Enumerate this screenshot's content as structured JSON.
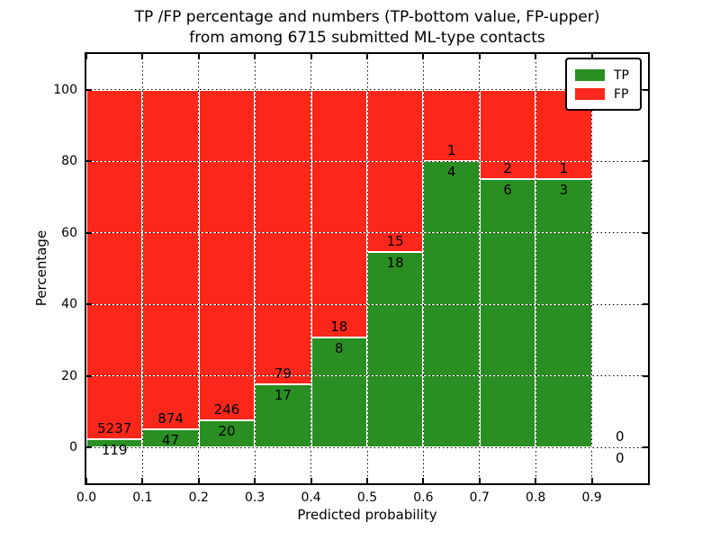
{
  "chart_data": {
    "type": "bar",
    "stacked": true,
    "normalized_to_percent": true,
    "title_line1": "TP /FP percentage and numbers (TP-bottom value, FP-upper)",
    "title_line2": "from among 6715 submitted ML-type contacts",
    "xlabel": "Predicted probability",
    "ylabel": "Percentage",
    "xlim": [
      0.0,
      1.0
    ],
    "ylim": [
      -10,
      110
    ],
    "grid": true,
    "legend_position": "upper right",
    "legend": [
      {
        "label": "TP",
        "color": "#2a8f22"
      },
      {
        "label": "FP",
        "color": "#fb271b"
      }
    ],
    "xticks": [
      {
        "v": 0.0,
        "label": "0.0"
      },
      {
        "v": 0.1,
        "label": "0.1"
      },
      {
        "v": 0.2,
        "label": "0.2"
      },
      {
        "v": 0.3,
        "label": "0.3"
      },
      {
        "v": 0.4,
        "label": "0.4"
      },
      {
        "v": 0.5,
        "label": "0.5"
      },
      {
        "v": 0.6,
        "label": "0.6"
      },
      {
        "v": 0.7,
        "label": "0.7"
      },
      {
        "v": 0.8,
        "label": "0.8"
      },
      {
        "v": 0.9,
        "label": "0.9"
      }
    ],
    "yticks": [
      {
        "v": 0,
        "label": "0"
      },
      {
        "v": 20,
        "label": "20"
      },
      {
        "v": 40,
        "label": "40"
      },
      {
        "v": 60,
        "label": "60"
      },
      {
        "v": 80,
        "label": "80"
      },
      {
        "v": 100,
        "label": "100"
      }
    ],
    "bins": [
      {
        "x0": 0.0,
        "x1": 0.1,
        "tp": 119,
        "fp": 5237
      },
      {
        "x0": 0.1,
        "x1": 0.2,
        "tp": 47,
        "fp": 874
      },
      {
        "x0": 0.2,
        "x1": 0.3,
        "tp": 20,
        "fp": 246
      },
      {
        "x0": 0.3,
        "x1": 0.4,
        "tp": 17,
        "fp": 79
      },
      {
        "x0": 0.4,
        "x1": 0.5,
        "tp": 8,
        "fp": 18
      },
      {
        "x0": 0.5,
        "x1": 0.6,
        "tp": 18,
        "fp": 15
      },
      {
        "x0": 0.6,
        "x1": 0.7,
        "tp": 4,
        "fp": 1
      },
      {
        "x0": 0.7,
        "x1": 0.8,
        "tp": 6,
        "fp": 2
      },
      {
        "x0": 0.8,
        "x1": 0.9,
        "tp": 3,
        "fp": 1
      },
      {
        "x0": 0.9,
        "x1": 1.0,
        "tp": 0,
        "fp": 0
      }
    ]
  }
}
